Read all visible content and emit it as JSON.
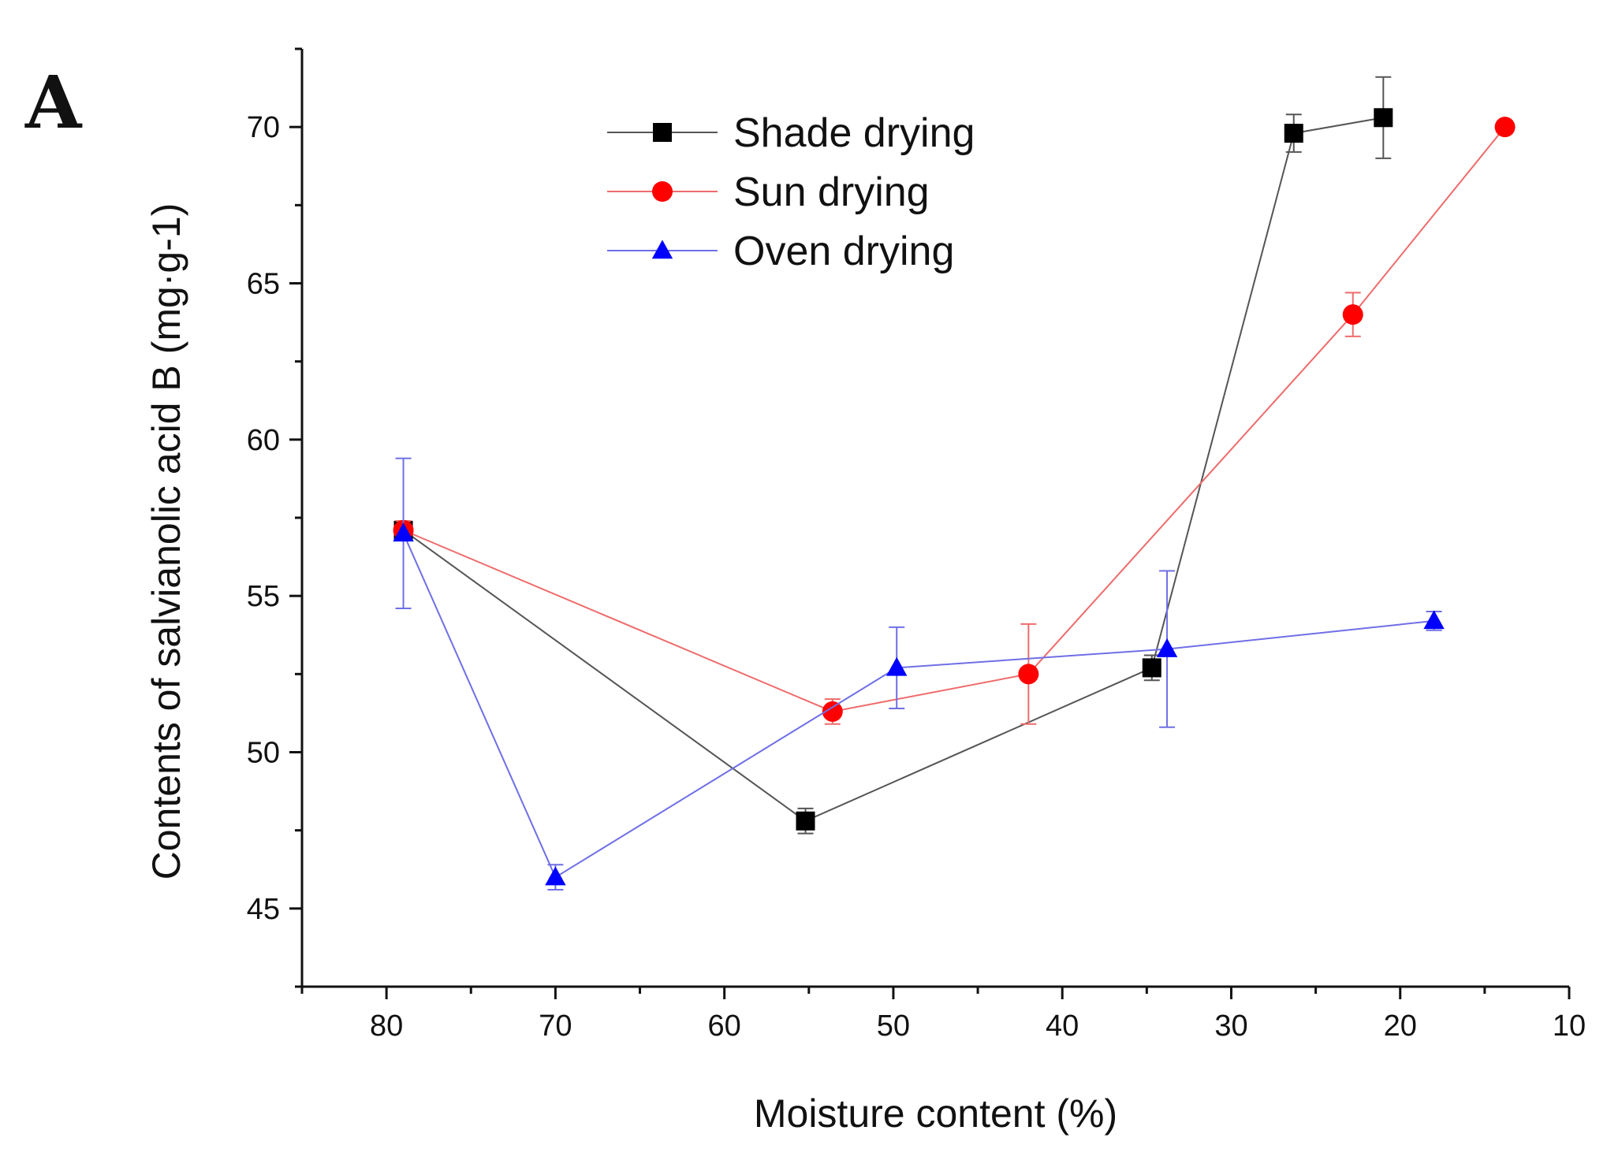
{
  "panel_label": "A",
  "chart_data": {
    "type": "line",
    "xlabel": "Moisture content (%)",
    "ylabel": "Contents of salvianolic acid B (mg·g-1)",
    "xlim": [
      85,
      10
    ],
    "ylim": [
      42.5,
      72.5
    ],
    "x_ticks": [
      80,
      70,
      60,
      50,
      40,
      30,
      20,
      10
    ],
    "y_ticks": [
      45,
      50,
      55,
      60,
      65,
      70
    ],
    "grid": false,
    "legend_position": "top-center",
    "series": [
      {
        "name": "Shade drying",
        "color": "#000000",
        "line_color": "#555555",
        "marker": "square",
        "points": [
          {
            "x": 79,
            "y": 57.1,
            "err": 0.3
          },
          {
            "x": 55.2,
            "y": 47.8,
            "err": 0.4
          },
          {
            "x": 34.7,
            "y": 52.7,
            "err": 0.4
          },
          {
            "x": 26.3,
            "y": 69.8,
            "err": 0.6
          },
          {
            "x": 21.0,
            "y": 70.3,
            "err": 1.3
          }
        ]
      },
      {
        "name": "Sun drying",
        "color": "#ff0000",
        "line_color": "#ef6b6b",
        "marker": "circle",
        "points": [
          {
            "x": 79,
            "y": 57.1,
            "err": 0.3
          },
          {
            "x": 53.6,
            "y": 51.3,
            "err": 0.4
          },
          {
            "x": 42.0,
            "y": 52.5,
            "err": 1.6
          },
          {
            "x": 22.8,
            "y": 64.0,
            "err": 0.7
          },
          {
            "x": 13.8,
            "y": 70.0,
            "err": 0.2
          }
        ]
      },
      {
        "name": "Oven drying",
        "color": "#0000ff",
        "line_color": "#6f6fe6",
        "marker": "triangle",
        "points": [
          {
            "x": 79,
            "y": 57.0,
            "err": 2.4
          },
          {
            "x": 70.0,
            "y": 46.0,
            "err": 0.4
          },
          {
            "x": 49.8,
            "y": 52.7,
            "err": 1.3
          },
          {
            "x": 33.8,
            "y": 53.3,
            "err": 2.5
          },
          {
            "x": 18.0,
            "y": 54.2,
            "err": 0.3
          }
        ]
      }
    ]
  }
}
